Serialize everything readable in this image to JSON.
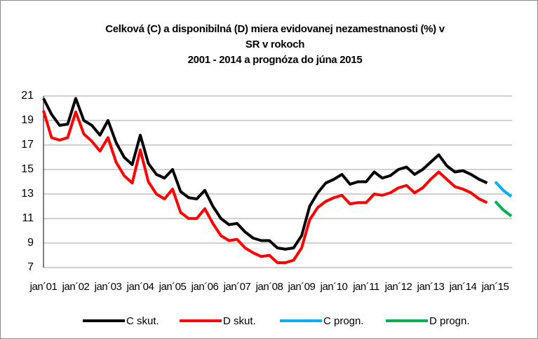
{
  "chart_data": {
    "type": "line",
    "title": [
      "Celková (C) a disponibilná (D) miera evidovanej nezamestnanosti (%) v",
      "SR v rokoch",
      "2001 - 2014 a prognóza do júna 2015"
    ],
    "categories": [
      "jan´01",
      null,
      null,
      null,
      "jan´02",
      null,
      null,
      null,
      "jan´03",
      null,
      null,
      null,
      "jan´04",
      null,
      null,
      null,
      "jan´05",
      null,
      null,
      null,
      "jan´06",
      null,
      null,
      null,
      "jan´07",
      null,
      null,
      null,
      "jan´08",
      null,
      null,
      null,
      "jan´09",
      null,
      null,
      null,
      "jan´10",
      null,
      null,
      null,
      "jan´11",
      null,
      null,
      null,
      "jan´12",
      null,
      null,
      null,
      "jan´13",
      null,
      null,
      null,
      "jan´14",
      null,
      null,
      null,
      "jan´15",
      null,
      null
    ],
    "series": [
      {
        "name": "C skut.",
        "color": "#000000",
        "values": [
          20.8,
          19.5,
          18.6,
          18.7,
          20.8,
          19.0,
          18.6,
          17.8,
          19.0,
          17.2,
          16.0,
          15.4,
          17.8,
          15.5,
          14.6,
          14.3,
          15.0,
          13.2,
          12.7,
          12.6,
          13.3,
          12.0,
          11.0,
          10.5,
          10.6,
          9.9,
          9.4,
          9.2,
          9.2,
          8.6,
          8.5,
          8.6,
          9.6,
          12.0,
          13.1,
          13.9,
          14.2,
          14.6,
          13.8,
          14.0,
          14.0,
          14.8,
          14.3,
          14.5,
          15.0,
          15.2,
          14.6,
          15.0,
          15.6,
          16.2,
          15.3,
          14.8,
          14.9,
          14.6,
          14.2,
          13.9,
          null,
          null,
          null
        ]
      },
      {
        "name": "D skut.",
        "color": "#ff0000",
        "values": [
          19.8,
          17.6,
          17.4,
          17.6,
          19.7,
          17.9,
          17.3,
          16.5,
          17.6,
          15.6,
          14.5,
          13.9,
          16.6,
          14.0,
          13.0,
          12.6,
          13.4,
          11.5,
          11.0,
          11.0,
          11.8,
          10.6,
          9.6,
          9.2,
          9.3,
          8.6,
          8.2,
          7.9,
          8.0,
          7.4,
          7.4,
          7.6,
          8.6,
          10.9,
          11.9,
          12.4,
          12.7,
          12.9,
          12.2,
          12.3,
          12.3,
          13.0,
          12.9,
          13.1,
          13.5,
          13.7,
          13.1,
          13.5,
          14.2,
          14.8,
          14.2,
          13.6,
          13.4,
          13.1,
          12.6,
          12.3,
          null,
          null,
          null
        ]
      },
      {
        "name": "C progn.",
        "color": "#00b0f0",
        "values": [
          null,
          null,
          null,
          null,
          null,
          null,
          null,
          null,
          null,
          null,
          null,
          null,
          null,
          null,
          null,
          null,
          null,
          null,
          null,
          null,
          null,
          null,
          null,
          null,
          null,
          null,
          null,
          null,
          null,
          null,
          null,
          null,
          null,
          null,
          null,
          null,
          null,
          null,
          null,
          null,
          null,
          null,
          null,
          null,
          null,
          null,
          null,
          null,
          null,
          null,
          null,
          null,
          null,
          null,
          null,
          null,
          14.0,
          13.3,
          12.8
        ]
      },
      {
        "name": "D progn.",
        "color": "#00b050",
        "values": [
          null,
          null,
          null,
          null,
          null,
          null,
          null,
          null,
          null,
          null,
          null,
          null,
          null,
          null,
          null,
          null,
          null,
          null,
          null,
          null,
          null,
          null,
          null,
          null,
          null,
          null,
          null,
          null,
          null,
          null,
          null,
          null,
          null,
          null,
          null,
          null,
          null,
          null,
          null,
          null,
          null,
          null,
          null,
          null,
          null,
          null,
          null,
          null,
          null,
          null,
          null,
          null,
          null,
          null,
          null,
          null,
          12.4,
          11.7,
          11.2
        ]
      }
    ],
    "ylim": [
      7,
      21
    ],
    "yticks": [
      7,
      9,
      11,
      13,
      15,
      17,
      19,
      21
    ],
    "grid": true,
    "legend": "bottom"
  }
}
